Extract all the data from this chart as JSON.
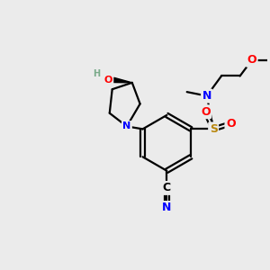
{
  "bg_color": "#ebebeb",
  "atom_colors": {
    "C": "#000000",
    "N": "#0000ff",
    "O": "#ff0000",
    "S": "#b8860b",
    "H": "#7aaa8a"
  },
  "bond_color": "#000000"
}
